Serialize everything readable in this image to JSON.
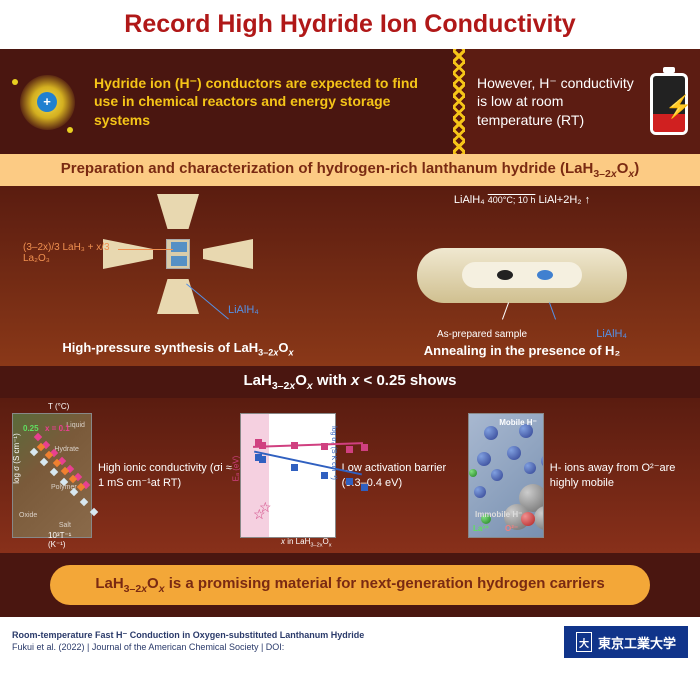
{
  "title": {
    "text": "Record High Hydride Ion Conductivity",
    "color": "#b01818",
    "background": "#ffffff"
  },
  "intro": {
    "left_bg": "#4a1610",
    "right_bg": "#5c1c12",
    "left_text": "Hydride ion (H⁻) conductors are expected to find use in chemical reactors and energy storage systems",
    "right_text": "However, H⁻ conductivity is low at room temperature (RT)",
    "text_color_left": "#f5c518",
    "text_color_right": "#ffffff"
  },
  "prep": {
    "title_html": "Preparation and characterization of hydrogen-rich lanthanum hydride (LaH<sub>3–2<i>x</i></sub>O<sub><i>x</i></sub>)",
    "bg": "#fccb84",
    "color": "#7a2a12"
  },
  "synthesis": {
    "bg_gradient": [
      "#5a1c10",
      "#8a3818"
    ],
    "left": {
      "formula": "(3–2x)/3 LaH₃ + x/3 La₂O₃",
      "reagent": "LiAlH₄",
      "caption_html": "High-pressure synthesis of LaH<sub>3–2<i>x</i></sub>O<sub><i>x</i></sub>"
    },
    "right": {
      "reaction": "LiAlH₄ ——→ LiAl+2H₂ ↑",
      "conditions": "400°C; 10 h",
      "as_prepared": "As-prepared sample",
      "reagent": "LiAlH₄",
      "caption": "Annealing in the presence of H₂"
    }
  },
  "shows": {
    "text_html": "LaH<sub>3–2<i>x</i></sub>O<sub><i>x</i></sub> with <i>x</i> < 0.25 shows",
    "bg": "#4a1610"
  },
  "results": {
    "bg_gradient": [
      "#5a1c10",
      "#88301a"
    ],
    "col1": {
      "desc_html": "High ionic conductivity (σi ≈ 1 mS cm⁻¹at RT)",
      "plot": {
        "y_label": "log σ (S cm⁻¹)",
        "x_label": "10³T⁻¹ (K⁻¹)",
        "top_label": "T (°C)",
        "top_ticks": "1300 800 400 200",
        "x_ticks": "1  2  3  4",
        "y_ticks": "0 -2 -4 -6 -8 -10",
        "highlight1": "0.25",
        "highlight2": "x = 0.1",
        "regions": [
          "Liquid",
          "Hydrate",
          "Polymer",
          "Salt",
          "Oxide"
        ],
        "series": [
          {
            "color": "#e84090",
            "points": [
              [
                22,
                20
              ],
              [
                30,
                28
              ],
              [
                38,
                36
              ],
              [
                46,
                44
              ],
              [
                54,
                52
              ],
              [
                62,
                60
              ],
              [
                70,
                68
              ]
            ]
          },
          {
            "color": "#f08030",
            "points": [
              [
                25,
                30
              ],
              [
                33,
                38
              ],
              [
                41,
                46
              ],
              [
                49,
                54
              ],
              [
                57,
                62
              ],
              [
                65,
                70
              ]
            ]
          },
          {
            "color": "#d8e8f0",
            "points": [
              [
                18,
                35
              ],
              [
                28,
                45
              ],
              [
                38,
                55
              ],
              [
                48,
                65
              ],
              [
                58,
                75
              ],
              [
                68,
                85
              ],
              [
                78,
                95
              ]
            ]
          }
        ]
      }
    },
    "col2": {
      "desc_html": "Low activation barrier (0.3–0.4 eV)",
      "plot": {
        "y1_label": "Eₐ (eV)",
        "y2_label": "log σ₀ (S K cm⁻¹)",
        "x_label_html": "<i>x</i> in LaH<sub>3–2x</sub>O<sub>x</sub>",
        "x_ticks": "0.0 0.2 0.4 0.6 0.8 1.0",
        "y1_ticks": "0.2 0.5 1.0 1.5",
        "y2_ticks": "0 5 10 15",
        "pink_points": [
          [
            14,
            25
          ],
          [
            18,
            28
          ],
          [
            50,
            28
          ],
          [
            80,
            29
          ],
          [
            105,
            32
          ],
          [
            120,
            30
          ]
        ],
        "blue_points": [
          [
            14,
            40
          ],
          [
            18,
            42
          ],
          [
            50,
            50
          ],
          [
            80,
            58
          ],
          [
            105,
            64
          ],
          [
            120,
            70
          ]
        ],
        "stars": [
          [
            12,
            92
          ],
          [
            18,
            85
          ]
        ]
      }
    },
    "col3": {
      "desc_html": "H- ions away from O²⁻are highly mobile",
      "labels": {
        "mobile": "Mobile H⁻",
        "immobile": "Immobile H⁻",
        "la": "La³⁺",
        "o": "O²⁻"
      }
    }
  },
  "conclusion": {
    "text_html": "LaH<sub>3–2<i>x</i></sub>O<sub><i>x</i></sub> is a promising material for next-generation hydrogen carriers",
    "bg": "#4a1610",
    "pill_bg": "#f3a738",
    "pill_color": "#7a2a12"
  },
  "footer": {
    "title": "Room-temperature Fast H⁻ Conduction in Oxygen-substituted Lanthanum Hydride",
    "citation": "Fukui et al. (2022) | Journal of the American Chemical Society | DOI:",
    "logo_text": "東京工業大学",
    "logo_bg": "#10348a"
  }
}
